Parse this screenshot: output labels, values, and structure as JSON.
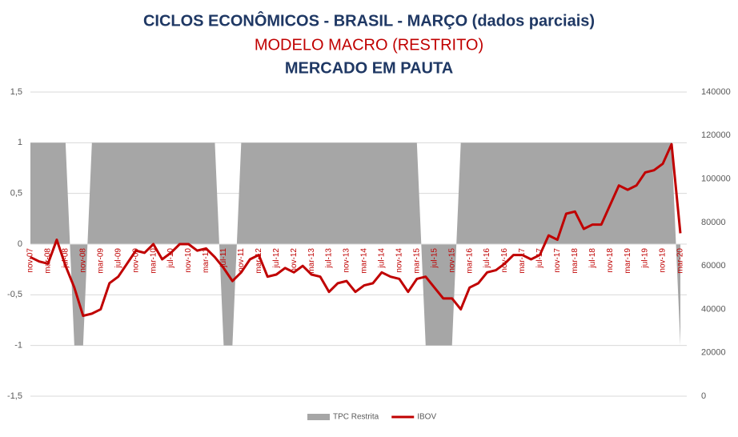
{
  "chart_data": {
    "type": "area_line",
    "title": "CICLOS ECONÔMICOS - BRASIL - MARÇO (dados parciais)",
    "subtitle": "MODELO MACRO (RESTRITO)",
    "subtitle2": "MERCADO EM PAUTA",
    "categories": [
      "nov-07",
      null,
      "mar-08",
      null,
      "jul-08",
      null,
      "nov-08",
      null,
      "mar-09",
      null,
      "jul-09",
      null,
      "nov-09",
      null,
      "mar-10",
      null,
      "jul-10",
      null,
      "nov-10",
      null,
      "mar-11",
      null,
      "jul-11",
      null,
      "nov-11",
      null,
      "mar-12",
      null,
      "jul-12",
      null,
      "nov-12",
      null,
      "mar-13",
      null,
      "jul-13",
      null,
      "nov-13",
      null,
      "mar-14",
      null,
      "jul-14",
      null,
      "nov-14",
      null,
      "mar-15",
      null,
      "jul-15",
      null,
      "nov-15",
      null,
      "mar-16",
      null,
      "jul-16",
      null,
      "nov-16",
      null,
      "mar-17",
      null,
      "jul-17",
      null,
      "nov-17",
      null,
      "mar-18",
      null,
      "jul-18",
      null,
      "nov-18",
      null,
      "mar-19",
      null,
      "jul-19",
      null,
      "nov-19",
      null,
      "mar-20"
    ],
    "series": [
      {
        "name": "TPC Restrita",
        "color": "#a6a6a6",
        "kind": "area",
        "values": [
          1,
          1,
          1,
          1,
          1,
          -1,
          -1,
          1,
          1,
          1,
          1,
          1,
          1,
          1,
          1,
          1,
          1,
          1,
          1,
          1,
          1,
          1,
          -1,
          -1,
          1,
          1,
          1,
          1,
          1,
          1,
          1,
          1,
          1,
          1,
          1,
          1,
          1,
          1,
          1,
          1,
          1,
          1,
          1,
          1,
          1,
          -1,
          -1,
          -1,
          -1,
          1,
          1,
          1,
          1,
          1,
          1,
          1,
          1,
          1,
          1,
          1,
          1,
          1,
          1,
          1,
          1,
          1,
          1,
          1,
          1,
          1,
          1,
          1,
          1,
          1,
          -1
        ]
      },
      {
        "name": "IBOV",
        "color": "#c00000",
        "kind": "line",
        "axis": "y2",
        "values": [
          64000,
          62000,
          61000,
          72000,
          60000,
          50000,
          37000,
          38000,
          40000,
          52000,
          55000,
          61000,
          67000,
          66000,
          70000,
          63000,
          66000,
          70000,
          70000,
          67000,
          68000,
          64000,
          59000,
          53000,
          57000,
          63000,
          65000,
          55000,
          56000,
          59000,
          57000,
          60000,
          56000,
          55000,
          48000,
          52000,
          53000,
          48000,
          51000,
          52000,
          57000,
          55000,
          54000,
          48000,
          54000,
          55000,
          50000,
          45000,
          45000,
          40000,
          50000,
          52000,
          57000,
          58000,
          61000,
          65000,
          65000,
          63000,
          65000,
          74000,
          72000,
          84000,
          85000,
          77000,
          79000,
          79000,
          88000,
          97000,
          95000,
          97000,
          103000,
          104000,
          107000,
          116000,
          75000
        ]
      }
    ],
    "ylim": [
      -1.5,
      1.5
    ],
    "yticks": [
      {
        "value": 1.5,
        "label": "1,5"
      },
      1,
      {
        "value": 0.5,
        "label": "0,5"
      },
      0,
      {
        "value": -0.5,
        "label": "-0,5"
      },
      -1,
      {
        "value": -1.5,
        "label": "-1,5"
      }
    ],
    "y2lim": [
      0,
      140000
    ],
    "y2ticks": [
      0,
      20000,
      40000,
      60000,
      80000,
      100000,
      120000,
      140000
    ],
    "grid": true,
    "legend": "bottom"
  }
}
